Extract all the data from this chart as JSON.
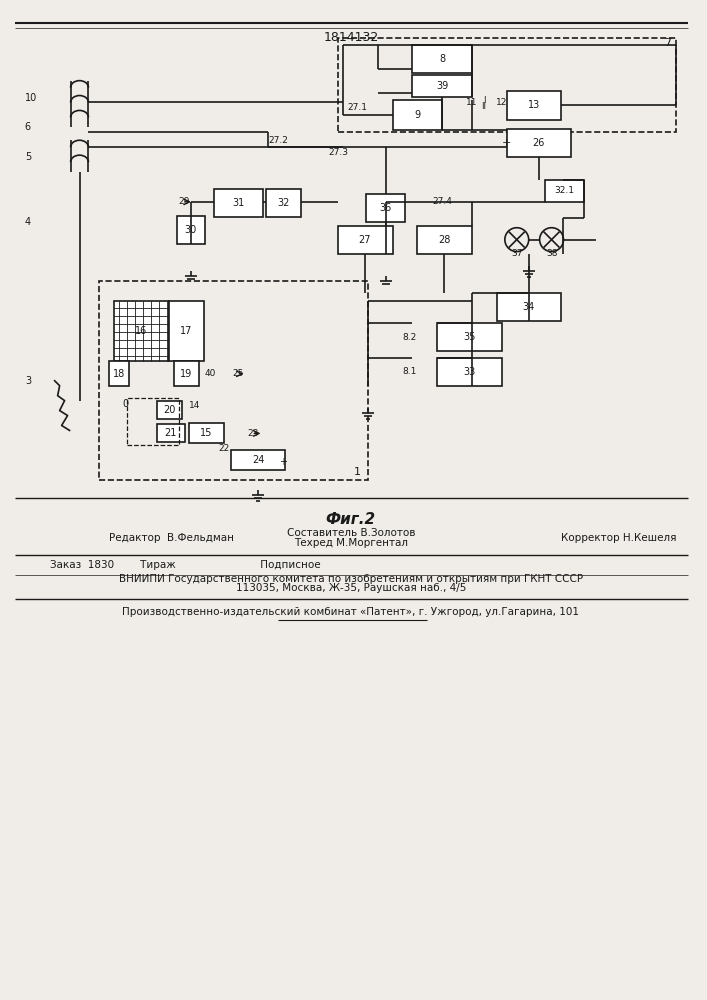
{
  "title": "1814132",
  "fig_label": "Фиг.2",
  "editor_line": "Редактор  В.Фельдман",
  "composer_line1": "Составитель В.Золотов",
  "composer_line2": "Техред М.Моргентал",
  "corrector_line": "Корректор Н.Кешеля",
  "order_line": "Заказ  1830        Тираж                          Подписное",
  "vniiipi_line": "ВНИИПИ Государственного комитета по изобретениям и открытиям при ГКНТ СССР",
  "address_line": "113035, Москва, Ж-35, Раушская наб., 4/5",
  "publisher_line": "Производственно-издательский комбинат «Патент», г. Ужгород, ул.Гагарина, 101",
  "bg_color": "#f0ede8",
  "line_color": "#1a1a1a",
  "box_color": "#1a1a1a",
  "text_color": "#1a1a1a"
}
